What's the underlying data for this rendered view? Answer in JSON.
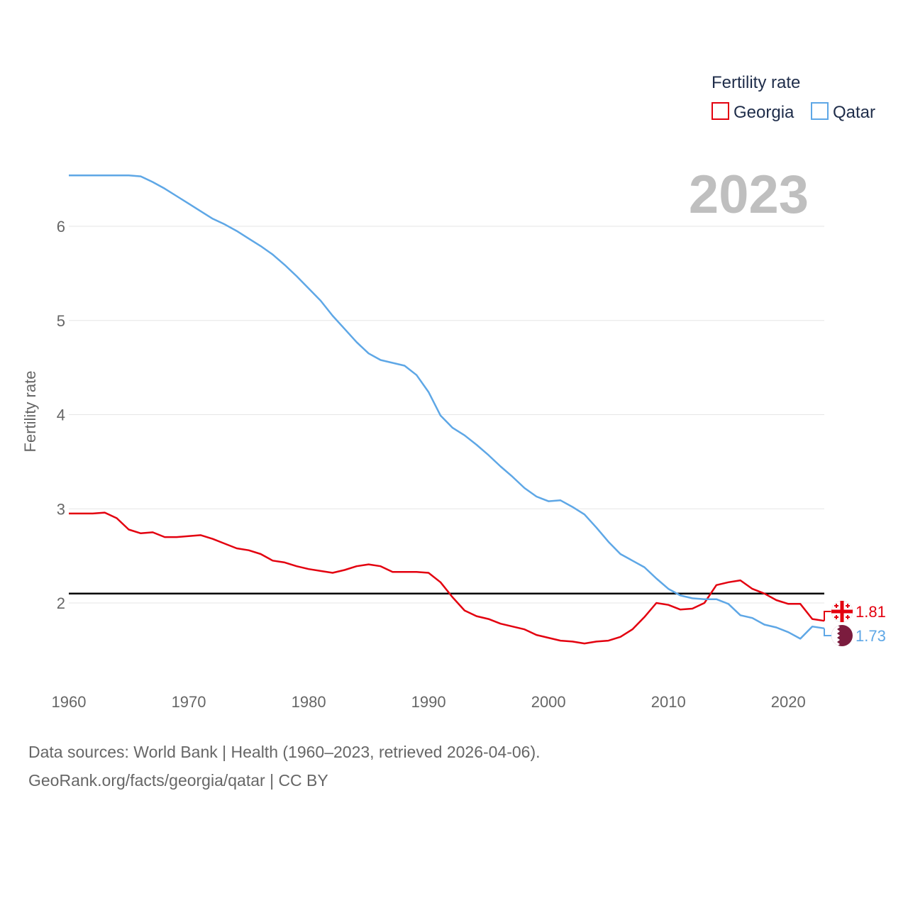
{
  "chart_data": {
    "type": "line",
    "legend_title": "Fertility rate",
    "ylabel": "Fertility rate",
    "xlim": [
      1960,
      2023
    ],
    "ylim": [
      1.2,
      6.7
    ],
    "x_ticks": [
      1960,
      1970,
      1980,
      1990,
      2000,
      2010,
      2020
    ],
    "y_ticks": [
      2,
      3,
      4,
      5,
      6
    ],
    "current_year": "2023",
    "reference_line": 2.1,
    "legend_position": "top-right",
    "x": [
      1960,
      1961,
      1962,
      1963,
      1964,
      1965,
      1966,
      1967,
      1968,
      1969,
      1970,
      1971,
      1972,
      1973,
      1974,
      1975,
      1976,
      1977,
      1978,
      1979,
      1980,
      1981,
      1982,
      1983,
      1984,
      1985,
      1986,
      1987,
      1988,
      1989,
      1990,
      1991,
      1992,
      1993,
      1994,
      1995,
      1996,
      1997,
      1998,
      1999,
      2000,
      2001,
      2002,
      2003,
      2004,
      2005,
      2006,
      2007,
      2008,
      2009,
      2010,
      2011,
      2012,
      2013,
      2014,
      2015,
      2016,
      2017,
      2018,
      2019,
      2020,
      2021,
      2022,
      2023
    ],
    "series": [
      {
        "name": "Georgia",
        "color": "#e3000f",
        "end_value_label": "1.81",
        "values": [
          2.95,
          2.95,
          2.95,
          2.96,
          2.9,
          2.78,
          2.74,
          2.75,
          2.7,
          2.7,
          2.71,
          2.72,
          2.68,
          2.63,
          2.58,
          2.56,
          2.52,
          2.45,
          2.43,
          2.39,
          2.36,
          2.34,
          2.32,
          2.35,
          2.39,
          2.41,
          2.39,
          2.33,
          2.33,
          2.33,
          2.32,
          2.22,
          2.06,
          1.92,
          1.86,
          1.83,
          1.78,
          1.75,
          1.72,
          1.66,
          1.63,
          1.6,
          1.59,
          1.57,
          1.59,
          1.6,
          1.64,
          1.72,
          1.85,
          2.0,
          1.98,
          1.93,
          1.94,
          2.0,
          2.19,
          2.22,
          2.24,
          2.15,
          2.1,
          2.03,
          1.99,
          1.99,
          1.83,
          1.81
        ]
      },
      {
        "name": "Qatar",
        "color": "#5ea7e6",
        "end_value_label": "1.73",
        "values": [
          6.54,
          6.54,
          6.54,
          6.54,
          6.54,
          6.54,
          6.53,
          6.47,
          6.4,
          6.32,
          6.24,
          6.16,
          6.08,
          6.02,
          5.95,
          5.87,
          5.79,
          5.7,
          5.59,
          5.47,
          5.34,
          5.21,
          5.05,
          4.91,
          4.77,
          4.65,
          4.58,
          4.55,
          4.52,
          4.42,
          4.24,
          3.99,
          3.86,
          3.78,
          3.68,
          3.57,
          3.45,
          3.34,
          3.22,
          3.13,
          3.08,
          3.09,
          3.02,
          2.94,
          2.8,
          2.65,
          2.52,
          2.45,
          2.38,
          2.26,
          2.15,
          2.08,
          2.05,
          2.04,
          2.04,
          1.99,
          1.87,
          1.84,
          1.77,
          1.74,
          1.69,
          1.62,
          1.75,
          1.73
        ]
      }
    ]
  },
  "footer": {
    "source": "Data sources: World Bank | Health (1960–2023, retrieved 2026-04-06).",
    "url": "GeoRank.org/facts/georgia/qatar | CC BY"
  },
  "colors": {
    "grid": "#e6e6e6",
    "reference_line": "#000000",
    "tick_text": "#666666",
    "year_watermark": "#bfbfbf",
    "legend_text": "#1f2d4a",
    "qatar_flag_maroon": "#7b1c3e"
  },
  "icons": {
    "georgia_marker": "georgia-flag-icon",
    "qatar_marker": "qatar-flag-icon"
  }
}
